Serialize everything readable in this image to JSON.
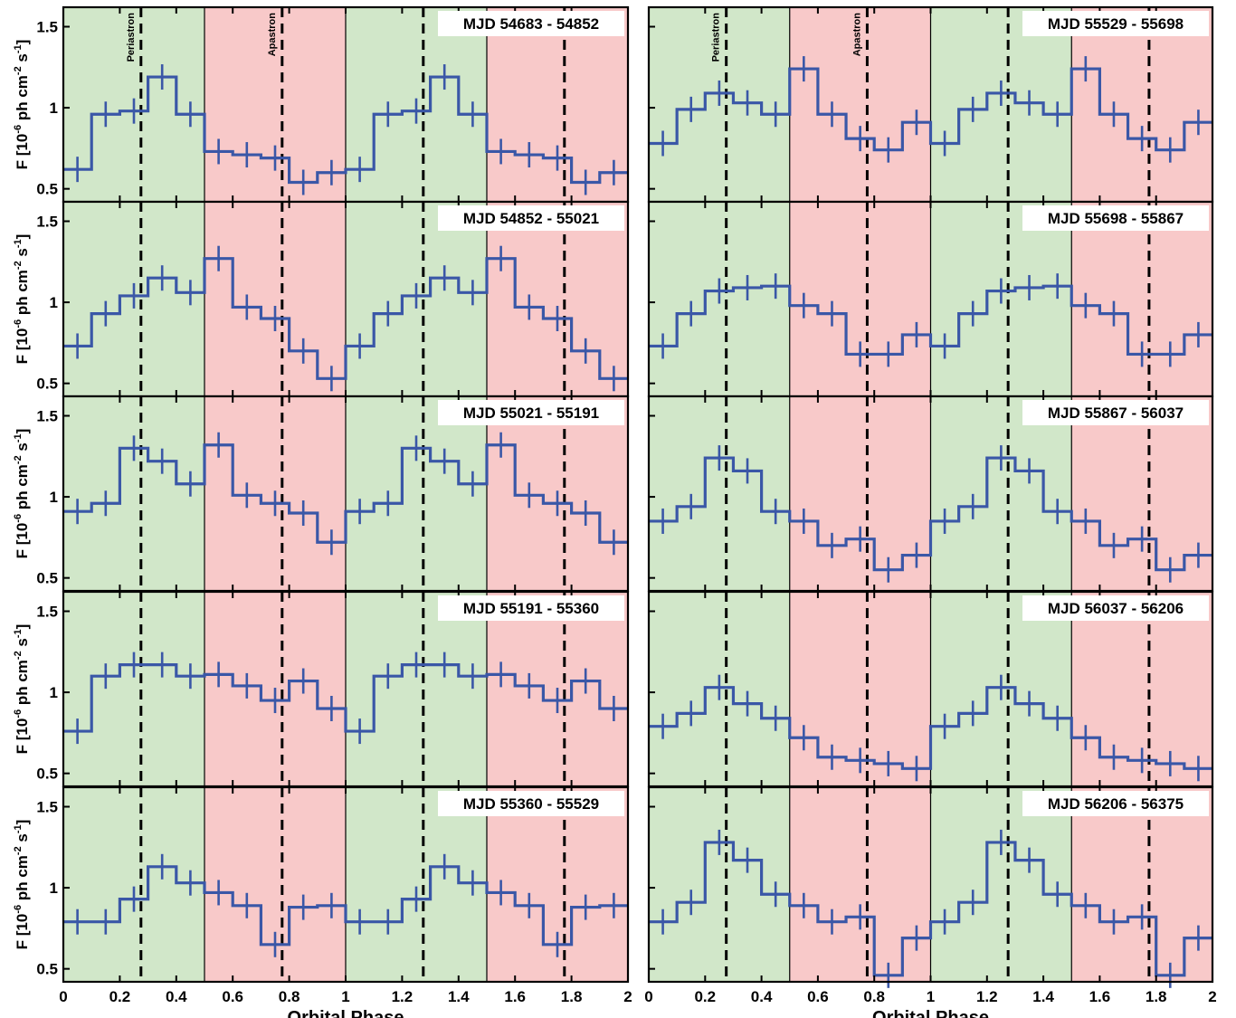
{
  "chart_data": {
    "type": "line",
    "xlabel": "Orbital Phase",
    "ylabel": {
      "prefix": "F [10",
      "exp1": "-6",
      "middle": " ph cm",
      "exp2": "-2",
      "middle2": " s",
      "exp3": "-1",
      "suffix": "]"
    },
    "xlim": [
      0,
      2
    ],
    "ylim": [
      0.42,
      1.62
    ],
    "xticks": [
      0,
      0.2,
      0.4,
      0.6,
      0.8,
      1,
      1.2,
      1.4,
      1.6,
      1.8,
      2
    ],
    "xtick_labels": [
      "0",
      "0.2",
      "0.4",
      "0.6",
      "0.8",
      "1",
      "1.2",
      "1.4",
      "1.6",
      "1.8",
      "2"
    ],
    "yticks": [
      0.5,
      1,
      1.5
    ],
    "ytick_labels": [
      "0.5",
      "1",
      "1.5"
    ],
    "periastron_phase": 0.275,
    "apastron_phase": 0.775,
    "annotations": [
      "Periastron",
      "Apastron"
    ],
    "shading": {
      "green_color": "#d1e7c9",
      "red_color": "#f8c9c9",
      "green_ranges": [
        [
          0,
          0.5
        ],
        [
          1,
          1.5
        ]
      ],
      "red_ranges": [
        [
          0.5,
          1
        ],
        [
          1.5,
          2
        ]
      ]
    },
    "line_color": "#3a57a7",
    "bin_width": 0.1,
    "x_bins": [
      0.05,
      0.15,
      0.25,
      0.35,
      0.45,
      0.55,
      0.65,
      0.75,
      0.85,
      0.95
    ],
    "panels": [
      {
        "label": "MJD 54683 - 54852",
        "values": [
          0.62,
          0.96,
          0.98,
          1.19,
          0.96,
          0.73,
          0.71,
          0.69,
          0.54,
          0.6
        ]
      },
      {
        "label": "MJD 54852 - 55021",
        "values": [
          0.73,
          0.93,
          1.04,
          1.15,
          1.06,
          1.27,
          0.97,
          0.9,
          0.7,
          0.53
        ]
      },
      {
        "label": "MJD 55021 - 55191",
        "values": [
          0.91,
          0.96,
          1.3,
          1.22,
          1.08,
          1.32,
          1.01,
          0.96,
          0.9,
          0.72
        ]
      },
      {
        "label": "MJD 55191 - 55360",
        "values": [
          0.76,
          1.1,
          1.17,
          1.17,
          1.1,
          1.11,
          1.04,
          0.95,
          1.07,
          0.9
        ]
      },
      {
        "label": "MJD 55360 - 55529",
        "values": [
          0.79,
          0.79,
          0.93,
          1.13,
          1.03,
          0.97,
          0.89,
          0.65,
          0.88,
          0.89
        ]
      },
      {
        "label": "MJD 55529 - 55698",
        "values": [
          0.78,
          0.99,
          1.09,
          1.03,
          0.96,
          1.24,
          0.96,
          0.81,
          0.74,
          0.91
        ]
      },
      {
        "label": "MJD 55698 - 55867",
        "values": [
          0.73,
          0.93,
          1.07,
          1.09,
          1.1,
          0.98,
          0.93,
          0.68,
          0.68,
          0.8
        ]
      },
      {
        "label": "MJD 55867 - 56037",
        "values": [
          0.85,
          0.94,
          1.24,
          1.16,
          0.91,
          0.85,
          0.7,
          0.74,
          0.55,
          0.64
        ]
      },
      {
        "label": "MJD 56037 - 56206",
        "values": [
          0.79,
          0.87,
          1.03,
          0.93,
          0.84,
          0.72,
          0.6,
          0.58,
          0.56,
          0.53
        ]
      },
      {
        "label": "MJD 56206 - 56375",
        "values": [
          0.79,
          0.91,
          1.28,
          1.17,
          0.96,
          0.89,
          0.79,
          0.82,
          0.46,
          0.69
        ]
      }
    ]
  }
}
